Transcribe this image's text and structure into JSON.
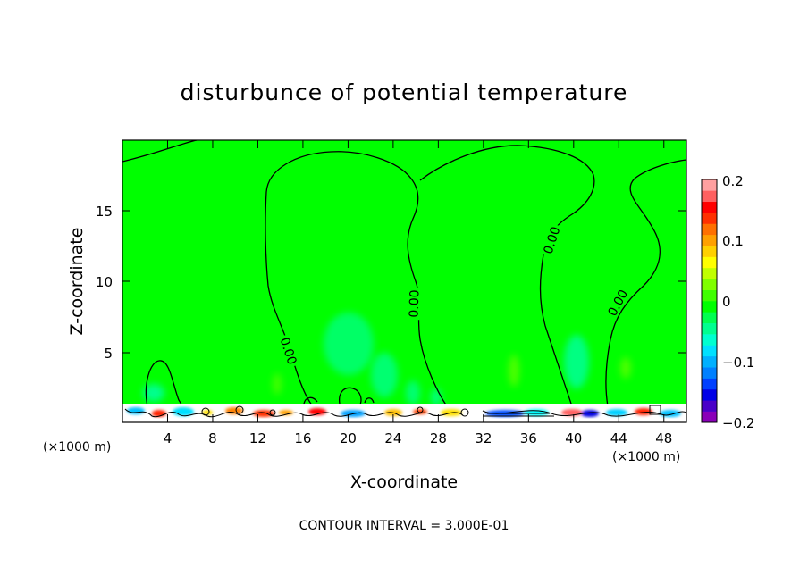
{
  "chart_data": {
    "type": "heatmap",
    "title": "disturbunce of potential temperature",
    "xlabel": "X-coordinate",
    "ylabel": "Z-coordinate",
    "x_unit": "(×1000 m)",
    "xlim": [
      0,
      50
    ],
    "ylim": [
      0,
      19.8
    ],
    "xticks": [
      "4",
      "8",
      "12",
      "16",
      "20",
      "24",
      "28",
      "32",
      "36",
      "40",
      "44",
      "48"
    ],
    "yticks": [
      "5",
      "10",
      "15"
    ],
    "colorbar": {
      "range": [
        -0.2,
        0.2
      ],
      "ticks": [
        "0.2",
        "0.1",
        "0",
        "−0.1",
        "−0.2"
      ],
      "colors": [
        "#8a00b8",
        "#4a00c8",
        "#0000e6",
        "#0040ff",
        "#0080ff",
        "#00b0ff",
        "#00e0ff",
        "#00ffd0",
        "#00ff90",
        "#00ff50",
        "#00ff00",
        "#40ff00",
        "#80ff00",
        "#c0ff00",
        "#ffff00",
        "#ffd000",
        "#ffa000",
        "#ff7000",
        "#ff3000",
        "#ff0000",
        "#ff6060",
        "#ffa0a0"
      ]
    },
    "contour_labels": [
      "0.00",
      "0.00",
      "0.00",
      "0.00"
    ],
    "footnote": "CONTOUR INTERVAL = 3.000E-01"
  }
}
